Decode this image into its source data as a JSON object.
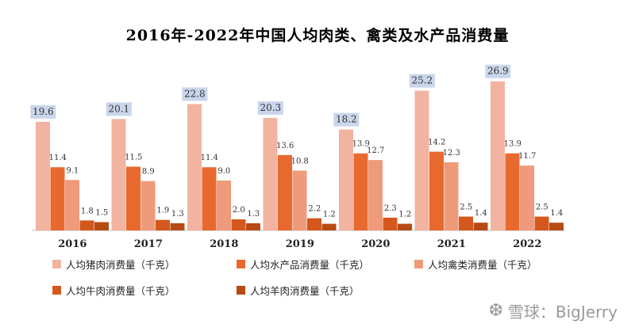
{
  "colors": {
    "pork": "#f2b4a0",
    "aquatic": "#e8692d",
    "poultry": "#ef9a7a",
    "beef": "#d4581e",
    "mutton": "#b84a14",
    "label_bg": "#c9d6ec",
    "axis": "#bfbfbf"
  },
  "chart_data": {
    "type": "bar",
    "title": "2016年-2022年中国人均肉类、禽类及水产品消费量",
    "categories": [
      "2016",
      "2017",
      "2018",
      "2019",
      "2020",
      "2021",
      "2022"
    ],
    "series": [
      {
        "name": "人均猪肉消费量（千克）",
        "values": [
          19.6,
          20.1,
          22.8,
          20.3,
          18.2,
          25.2,
          26.9
        ],
        "labels": [
          "19.6",
          "20.1",
          "22.8",
          "20.3",
          "18.2",
          "25.2",
          "26.9"
        ]
      },
      {
        "name": "人均水产品消费量（千克）",
        "values": [
          11.4,
          11.5,
          11.4,
          13.6,
          13.9,
          14.2,
          13.9
        ],
        "labels": [
          "11.4",
          "11.5",
          "11.4",
          "13.6",
          "13.9",
          "14.2",
          "13.9"
        ]
      },
      {
        "name": "人均禽类消费量（千克）",
        "values": [
          9.1,
          8.9,
          9.0,
          10.8,
          12.7,
          12.3,
          11.7
        ],
        "labels": [
          "9.1",
          "8.9",
          "9.0",
          "10.8",
          "12.7",
          "12.3",
          "11.7"
        ]
      },
      {
        "name": "人均牛肉消费量（千克）",
        "values": [
          1.8,
          1.9,
          2.0,
          2.2,
          2.3,
          2.5,
          2.5
        ],
        "labels": [
          "1.8",
          "1.9",
          "2.0",
          "2.2",
          "2.3",
          "2.5",
          "2.5"
        ]
      },
      {
        "name": "人均羊肉消费量（千克）",
        "values": [
          1.5,
          1.3,
          1.3,
          1.2,
          1.2,
          1.4,
          1.4
        ],
        "labels": [
          "1.5",
          "1.3",
          "1.3",
          "1.2",
          "1.2",
          "1.4",
          "1.4"
        ]
      }
    ],
    "ylim": [
      0,
      28
    ],
    "grid": false,
    "legend_position": "bottom"
  },
  "watermark": {
    "icon": "snowball-logo-icon",
    "text": "雪球：BigJerry"
  }
}
